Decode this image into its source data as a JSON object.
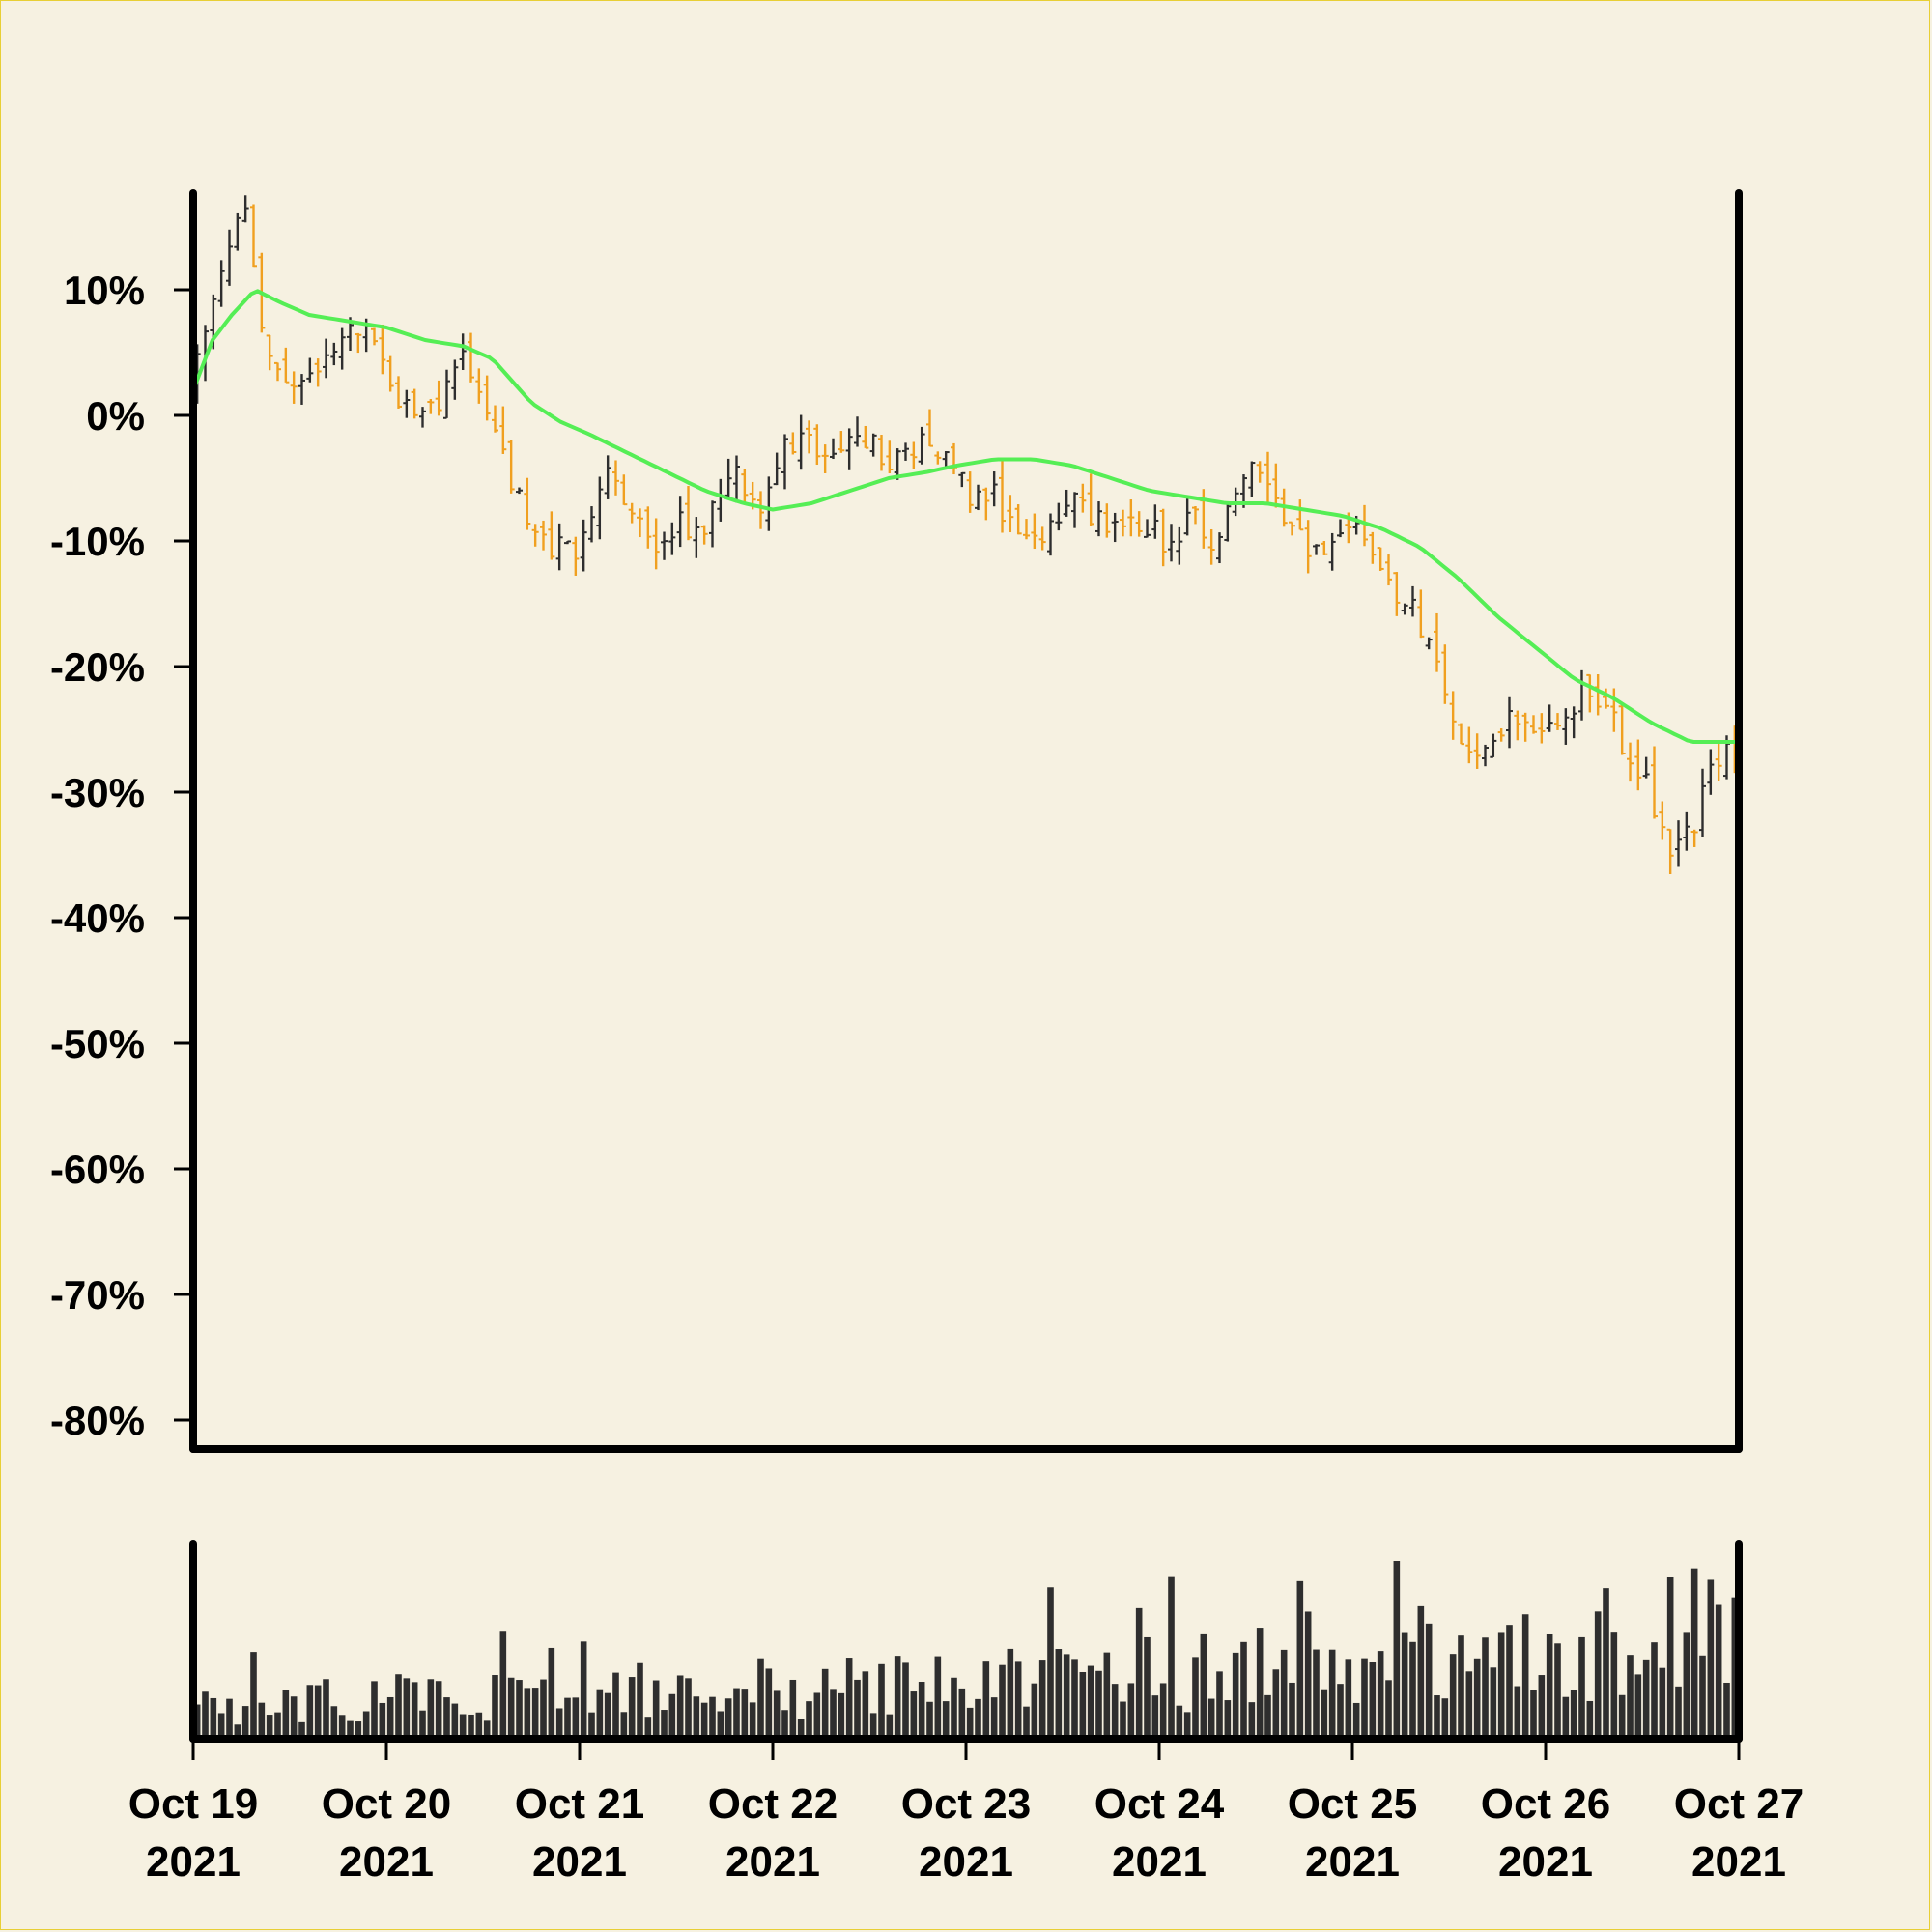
{
  "chart_data": {
    "type": "ohlc",
    "title": "",
    "xlabel": "",
    "ylabel": "",
    "ylim": [
      -80,
      17
    ],
    "yticks": [
      10,
      0,
      -10,
      -20,
      -30,
      -40,
      -50,
      -60,
      -70,
      -80
    ],
    "ytick_labels": [
      "10%",
      "0%",
      "-10%",
      "-20%",
      "-30%",
      "-40%",
      "-50%",
      "-60%",
      "-70%",
      "-80%"
    ],
    "xlim_days": [
      0,
      8
    ],
    "xticks": [
      {
        "line1": "Oct 19",
        "line2": "2021"
      },
      {
        "line1": "Oct 20",
        "line2": "2021"
      },
      {
        "line1": "Oct 21",
        "line2": "2021"
      },
      {
        "line1": "Oct 22",
        "line2": "2021"
      },
      {
        "line1": "Oct 23",
        "line2": "2021"
      },
      {
        "line1": "Oct 24",
        "line2": "2021"
      },
      {
        "line1": "Oct 25",
        "line2": "2021"
      },
      {
        "line1": "Oct 26",
        "line2": "2021"
      },
      {
        "line1": "Oct 27",
        "line2": "2021"
      }
    ],
    "colors": {
      "up": "#2e2e2e",
      "down": "#f0a020",
      "moving_average": "#55ee55",
      "volume": "#2e2e2e",
      "axis": "#000000",
      "background": "#f6f1e1"
    },
    "price_path": [
      [
        0.0,
        2
      ],
      [
        0.06,
        6
      ],
      [
        0.14,
        11
      ],
      [
        0.22,
        14
      ],
      [
        0.3,
        17.5
      ],
      [
        0.36,
        8
      ],
      [
        0.46,
        4
      ],
      [
        0.58,
        3
      ],
      [
        0.7,
        4
      ],
      [
        0.84,
        7
      ],
      [
        0.93,
        8
      ],
      [
        1.05,
        2
      ],
      [
        1.15,
        0
      ],
      [
        1.3,
        1
      ],
      [
        1.4,
        5
      ],
      [
        1.5,
        2
      ],
      [
        1.62,
        -3
      ],
      [
        1.75,
        -8
      ],
      [
        1.85,
        -11
      ],
      [
        1.95,
        -9
      ],
      [
        2.0,
        -12
      ],
      [
        2.1,
        -7
      ],
      [
        2.2,
        -4
      ],
      [
        2.3,
        -8
      ],
      [
        2.4,
        -10
      ],
      [
        2.55,
        -8
      ],
      [
        2.65,
        -10
      ],
      [
        2.75,
        -6
      ],
      [
        2.85,
        -5
      ],
      [
        2.95,
        -9
      ],
      [
        3.05,
        -3
      ],
      [
        3.2,
        -2
      ],
      [
        3.35,
        -3
      ],
      [
        3.5,
        -2
      ],
      [
        3.65,
        -4
      ],
      [
        3.8,
        -2
      ],
      [
        3.95,
        -3
      ],
      [
        4.05,
        -7
      ],
      [
        4.15,
        -6
      ],
      [
        4.3,
        -10
      ],
      [
        4.45,
        -9
      ],
      [
        4.6,
        -7
      ],
      [
        4.75,
        -9
      ],
      [
        4.9,
        -8
      ],
      [
        5.05,
        -10
      ],
      [
        5.2,
        -8
      ],
      [
        5.3,
        -11
      ],
      [
        5.4,
        -7
      ],
      [
        5.5,
        -4
      ],
      [
        5.6,
        -5
      ],
      [
        5.7,
        -9
      ],
      [
        5.85,
        -11
      ],
      [
        6.0,
        -10
      ],
      [
        6.1,
        -9
      ],
      [
        6.2,
        -13
      ],
      [
        6.35,
        -16
      ],
      [
        6.45,
        -19
      ],
      [
        6.55,
        -25
      ],
      [
        6.65,
        -27
      ],
      [
        6.75,
        -26
      ],
      [
        6.85,
        -23
      ],
      [
        6.95,
        -25
      ],
      [
        7.05,
        -24
      ],
      [
        7.15,
        -23
      ],
      [
        7.25,
        -22
      ],
      [
        7.35,
        -23
      ],
      [
        7.45,
        -28
      ],
      [
        7.55,
        -29
      ],
      [
        7.62,
        -33
      ],
      [
        7.7,
        -35
      ],
      [
        7.8,
        -32
      ],
      [
        7.88,
        -28
      ],
      [
        7.95,
        -27
      ],
      [
        8.0,
        -28
      ]
    ],
    "moving_average": [
      [
        0.0,
        2
      ],
      [
        0.1,
        6
      ],
      [
        0.2,
        8
      ],
      [
        0.32,
        10
      ],
      [
        0.45,
        9
      ],
      [
        0.6,
        8
      ],
      [
        0.8,
        7.5
      ],
      [
        1.0,
        7
      ],
      [
        1.2,
        6
      ],
      [
        1.4,
        5.5
      ],
      [
        1.55,
        4.5
      ],
      [
        1.75,
        1
      ],
      [
        1.9,
        -0.5
      ],
      [
        2.05,
        -1.5
      ],
      [
        2.25,
        -3
      ],
      [
        2.45,
        -4.5
      ],
      [
        2.65,
        -6
      ],
      [
        2.85,
        -7
      ],
      [
        3.0,
        -7.5
      ],
      [
        3.2,
        -7
      ],
      [
        3.4,
        -6
      ],
      [
        3.6,
        -5
      ],
      [
        3.8,
        -4.5
      ],
      [
        3.95,
        -4
      ],
      [
        4.15,
        -3.5
      ],
      [
        4.35,
        -3.5
      ],
      [
        4.55,
        -4
      ],
      [
        4.75,
        -5
      ],
      [
        4.95,
        -6
      ],
      [
        5.15,
        -6.5
      ],
      [
        5.35,
        -7
      ],
      [
        5.55,
        -7
      ],
      [
        5.75,
        -7.5
      ],
      [
        5.95,
        -8
      ],
      [
        6.15,
        -9
      ],
      [
        6.35,
        -10.5
      ],
      [
        6.55,
        -13
      ],
      [
        6.75,
        -16
      ],
      [
        6.95,
        -18.5
      ],
      [
        7.15,
        -21
      ],
      [
        7.35,
        -22.5
      ],
      [
        7.55,
        -24.5
      ],
      [
        7.75,
        -26
      ],
      [
        7.9,
        -26
      ],
      [
        8.0,
        -26
      ]
    ],
    "volume_level_path": [
      [
        0.0,
        0.18
      ],
      [
        1.0,
        0.22
      ],
      [
        2.0,
        0.26
      ],
      [
        3.0,
        0.27
      ],
      [
        4.0,
        0.3
      ],
      [
        5.0,
        0.36
      ],
      [
        6.0,
        0.42
      ],
      [
        7.0,
        0.52
      ],
      [
        8.0,
        0.62
      ]
    ]
  }
}
